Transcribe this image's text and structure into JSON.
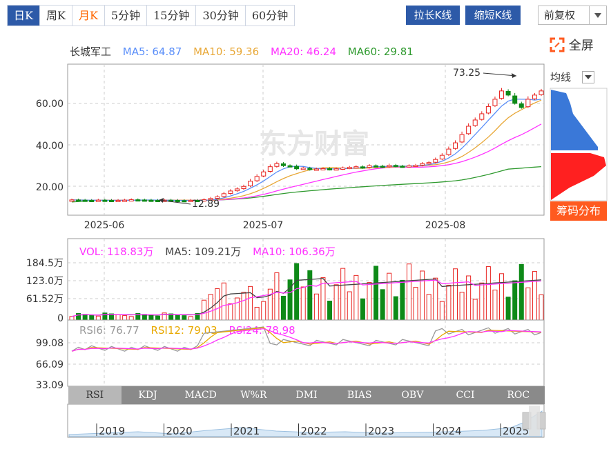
{
  "period_tabs": [
    {
      "label": "日K",
      "state": "active"
    },
    {
      "label": "周K",
      "state": ""
    },
    {
      "label": "月K",
      "state": "orange"
    },
    {
      "label": "5分钟",
      "state": ""
    },
    {
      "label": "15分钟",
      "state": ""
    },
    {
      "label": "30分钟",
      "state": ""
    },
    {
      "label": "60分钟",
      "state": ""
    }
  ],
  "toolbar": {
    "stretch_label": "拉长K线",
    "shrink_label": "缩短K线",
    "adjust_label": "前复权",
    "fullscreen_label": "全屏"
  },
  "price_legend": {
    "name": "长城军工",
    "ma5": "MA5: 64.87",
    "ma10": "MA10: 59.36",
    "ma20": "MA20: 46.24",
    "ma60": "MA60: 29.81"
  },
  "colors": {
    "accent": "#2d5aa8",
    "up": "#e8231f",
    "down": "#0e8a18",
    "ma5": "#5b8ff9",
    "ma10": "#e8a838",
    "ma20": "#ff33ff",
    "ma60": "#2f9a2f",
    "chip_up": "#ff2020",
    "chip_down": "#3a78d8"
  },
  "price_axis": {
    "ticks": [
      "60.00",
      "40.00",
      "20.00"
    ]
  },
  "date_axis": {
    "ticks": [
      "2025-06",
      "2025-07",
      "2025-08"
    ]
  },
  "annotations": {
    "high": "73.25",
    "low": "12.89"
  },
  "watermark": "东方财富",
  "chip": {
    "select_label": "均线",
    "button_label": "筹码分布"
  },
  "volume_legend": {
    "vol": "VOL: 118.83万",
    "ma5": "MA5: 109.21万",
    "ma10": "MA10: 106.36万"
  },
  "volume_axis": {
    "ticks": [
      "184.5万",
      "123.0万",
      "61.52万",
      "0"
    ]
  },
  "rsi_legend": {
    "rsi6": "RSI6: 76.77",
    "rsi12": "RSI12: 79.03",
    "rsi24": "RSI24: 78.98"
  },
  "rsi_axis": {
    "ticks": [
      "99.08",
      "66.09",
      "33.09"
    ]
  },
  "indicator_tabs": [
    "RSI",
    "KDJ",
    "MACD",
    "W%R",
    "DMI",
    "BIAS",
    "OBV",
    "CCI",
    "ROC"
  ],
  "navigator": {
    "years": [
      "2019",
      "2020",
      "2021",
      "2022",
      "2023",
      "2024",
      "2025"
    ]
  }
}
